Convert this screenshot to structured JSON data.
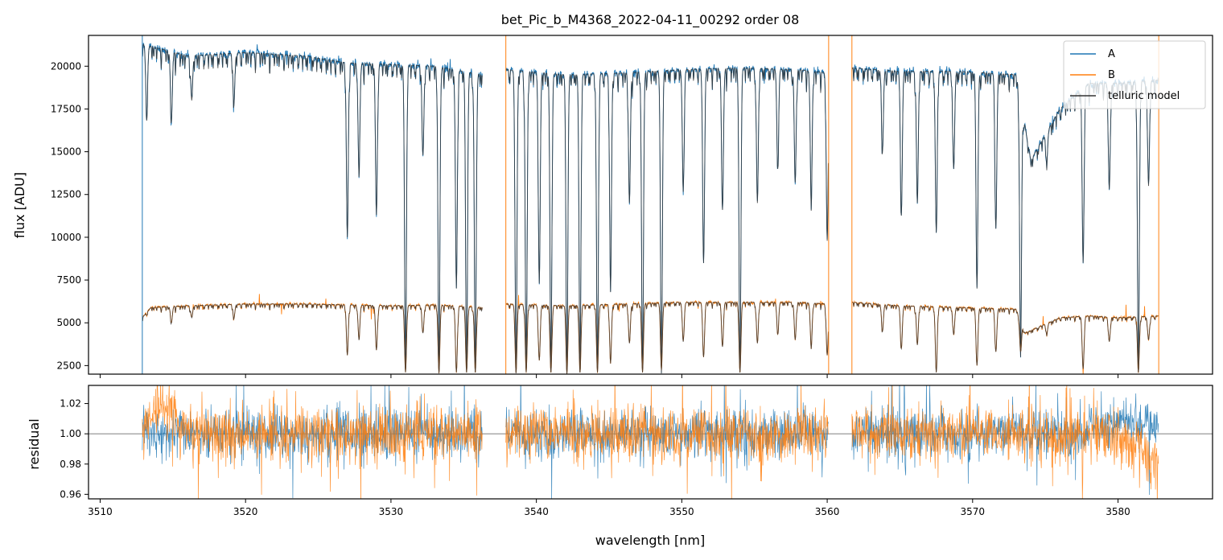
{
  "chart_data": {
    "type": "line",
    "title": "bet_Pic_b_M4368_2022-04-11_00292  order 08",
    "xlabel": "wavelength [nm]",
    "xlim": [
      3509.2,
      3586.5
    ],
    "x_ticks": [
      3510,
      3520,
      3530,
      3540,
      3550,
      3560,
      3570,
      3580
    ],
    "x_tick_labels": [
      "3510",
      "3520",
      "3530",
      "3540",
      "3550",
      "3560",
      "3570",
      "3580"
    ],
    "colors": {
      "A": "#1f77b4",
      "B": "#ff7f0e",
      "telluric": "#333333"
    },
    "segments": [
      [
        3512.9,
        3536.3
      ],
      [
        3537.9,
        3560.1
      ],
      [
        3561.7,
        3582.8
      ]
    ],
    "grid": false,
    "panels": [
      {
        "name": "flux",
        "ylabel": "flux [ADU]",
        "ylim": [
          2000,
          21800
        ],
        "y_ticks": [
          2500,
          5000,
          7500,
          10000,
          12500,
          15000,
          17500,
          20000
        ],
        "y_tick_labels": [
          "2500",
          "5000",
          "7500",
          "10000",
          "12500",
          "15000",
          "17500",
          "20000"
        ],
        "legend": {
          "placement": "top-right",
          "entries": [
            {
              "label": "A",
              "color": "#1f77b4"
            },
            {
              "label": "B",
              "color": "#ff7f0e"
            },
            {
              "label": "telluric model",
              "color": "#333333"
            }
          ]
        },
        "series": [
          {
            "name": "A",
            "x": [
              3512.9,
              3516,
              3520,
              3524,
              3527,
              3530,
              3533,
              3536.3,
              3537.9,
              3542,
              3546,
              3550,
              3554,
              3558,
              3560.1,
              3561.7,
              3565,
              3569,
              3573,
              3574,
              3576,
              3578,
              3580,
              3582.8
            ],
            "y": [
              21300,
              20600,
              20800,
              20600,
              20200,
              20100,
              20000,
              19500,
              19800,
              19500,
              19600,
              19800,
              19900,
              19800,
              19600,
              19900,
              19700,
              19700,
              19500,
              14500,
              17500,
              19000,
              19000,
              19200
            ],
            "absorption_lines": [
              {
                "x": 3513.2,
                "y": 17300
              },
              {
                "x": 3514.9,
                "y": 16800
              },
              {
                "x": 3516.3,
                "y": 18000
              },
              {
                "x": 3519.2,
                "y": 17900
              },
              {
                "x": 3527.0,
                "y": 10000
              },
              {
                "x": 3527.8,
                "y": 13900
              },
              {
                "x": 3529.0,
                "y": 11300
              },
              {
                "x": 3531.0,
                "y": 2100
              },
              {
                "x": 3532.2,
                "y": 14800
              },
              {
                "x": 3533.3,
                "y": 2100
              },
              {
                "x": 3534.5,
                "y": 7000
              },
              {
                "x": 3535.2,
                "y": 2100
              },
              {
                "x": 3535.8,
                "y": 2100
              },
              {
                "x": 3538.6,
                "y": 2100
              },
              {
                "x": 3539.3,
                "y": 2100
              },
              {
                "x": 3540.2,
                "y": 7300
              },
              {
                "x": 3541.0,
                "y": 2100
              },
              {
                "x": 3542.1,
                "y": 2100
              },
              {
                "x": 3543.0,
                "y": 2100
              },
              {
                "x": 3544.2,
                "y": 2100
              },
              {
                "x": 3545.1,
                "y": 7000
              },
              {
                "x": 3546.4,
                "y": 12000
              },
              {
                "x": 3547.3,
                "y": 2100
              },
              {
                "x": 3548.6,
                "y": 2100
              },
              {
                "x": 3550.1,
                "y": 13000
              },
              {
                "x": 3551.5,
                "y": 8500
              },
              {
                "x": 3552.8,
                "y": 11600
              },
              {
                "x": 3554.0,
                "y": 2100
              },
              {
                "x": 3555.2,
                "y": 12000
              },
              {
                "x": 3556.6,
                "y": 14200
              },
              {
                "x": 3557.8,
                "y": 13200
              },
              {
                "x": 3558.9,
                "y": 12000
              },
              {
                "x": 3560.0,
                "y": 9800
              },
              {
                "x": 3563.8,
                "y": 15000
              },
              {
                "x": 3565.1,
                "y": 11300
              },
              {
                "x": 3566.2,
                "y": 12000
              },
              {
                "x": 3567.5,
                "y": 10300
              },
              {
                "x": 3568.7,
                "y": 14000
              },
              {
                "x": 3570.3,
                "y": 7000
              },
              {
                "x": 3571.6,
                "y": 10500
              },
              {
                "x": 3573.3,
                "y": 3000
              },
              {
                "x": 3575.1,
                "y": 14500
              },
              {
                "x": 3577.6,
                "y": 8500
              },
              {
                "x": 3579.4,
                "y": 12800
              },
              {
                "x": 3581.4,
                "y": 2100
              },
              {
                "x": 3582.1,
                "y": 13000
              }
            ]
          },
          {
            "name": "B",
            "x": [
              3512.9,
              3513.5,
              3516,
              3520,
              3524,
              3527,
              3530,
              3533,
              3536.3,
              3537.9,
              3542,
              3546,
              3550,
              3554,
              3558,
              3560.1,
              3561.7,
              3565,
              3569,
              3573,
              3573.6,
              3576,
              3578,
              3580,
              3582.8
            ],
            "y": [
              5300,
              5900,
              6000,
              6100,
              6100,
              6050,
              6000,
              6050,
              5900,
              6100,
              6000,
              6100,
              6200,
              6200,
              6200,
              6100,
              6200,
              6000,
              5900,
              5800,
              4400,
              5300,
              5400,
              5300,
              5400
            ],
            "absorption_lines": [
              {
                "x": 3514.9,
                "y": 5000
              },
              {
                "x": 3516.3,
                "y": 5300
              },
              {
                "x": 3519.2,
                "y": 5300
              },
              {
                "x": 3527.0,
                "y": 3100
              },
              {
                "x": 3527.8,
                "y": 4100
              },
              {
                "x": 3529.0,
                "y": 3400
              },
              {
                "x": 3531.0,
                "y": 2100
              },
              {
                "x": 3532.2,
                "y": 4400
              },
              {
                "x": 3533.3,
                "y": 2100
              },
              {
                "x": 3534.5,
                "y": 2100
              },
              {
                "x": 3535.2,
                "y": 2100
              },
              {
                "x": 3535.8,
                "y": 2100
              },
              {
                "x": 3538.6,
                "y": 2100
              },
              {
                "x": 3539.3,
                "y": 2100
              },
              {
                "x": 3540.2,
                "y": 2800
              },
              {
                "x": 3541.0,
                "y": 2100
              },
              {
                "x": 3542.1,
                "y": 2100
              },
              {
                "x": 3543.0,
                "y": 2100
              },
              {
                "x": 3544.2,
                "y": 2100
              },
              {
                "x": 3545.1,
                "y": 2700
              },
              {
                "x": 3546.4,
                "y": 3800
              },
              {
                "x": 3547.3,
                "y": 2100
              },
              {
                "x": 3548.6,
                "y": 2300
              },
              {
                "x": 3550.1,
                "y": 4000
              },
              {
                "x": 3551.5,
                "y": 3000
              },
              {
                "x": 3552.8,
                "y": 3600
              },
              {
                "x": 3554.0,
                "y": 2100
              },
              {
                "x": 3555.2,
                "y": 3800
              },
              {
                "x": 3556.6,
                "y": 4400
              },
              {
                "x": 3557.8,
                "y": 4000
              },
              {
                "x": 3558.9,
                "y": 3600
              },
              {
                "x": 3560.0,
                "y": 3100
              },
              {
                "x": 3563.8,
                "y": 4500
              },
              {
                "x": 3565.1,
                "y": 3500
              },
              {
                "x": 3566.2,
                "y": 3700
              },
              {
                "x": 3567.5,
                "y": 2100
              },
              {
                "x": 3568.7,
                "y": 4300
              },
              {
                "x": 3570.3,
                "y": 2500
              },
              {
                "x": 3571.6,
                "y": 3300
              },
              {
                "x": 3573.3,
                "y": 3300
              },
              {
                "x": 3575.1,
                "y": 4400
              },
              {
                "x": 3577.6,
                "y": 2300
              },
              {
                "x": 3579.4,
                "y": 3900
              },
              {
                "x": 3581.4,
                "y": 2100
              },
              {
                "x": 3582.1,
                "y": 4000
              }
            ]
          }
        ]
      },
      {
        "name": "residual",
        "ylabel": "residual",
        "ylim": [
          0.957,
          1.032
        ],
        "y_ticks": [
          0.96,
          0.98,
          1.0,
          1.02
        ],
        "y_tick_labels": [
          "0.96",
          "0.98",
          "1.00",
          "1.02"
        ],
        "reference_line": 1.0,
        "series": [
          {
            "name": "A",
            "noise": 0.008,
            "spike_prob": 0.035,
            "x_range": [
              3512.9,
              3582.8
            ]
          },
          {
            "name": "B",
            "noise": 0.009,
            "spike_prob": 0.035,
            "x_range": [
              3512.9,
              3582.8
            ]
          }
        ]
      }
    ]
  }
}
